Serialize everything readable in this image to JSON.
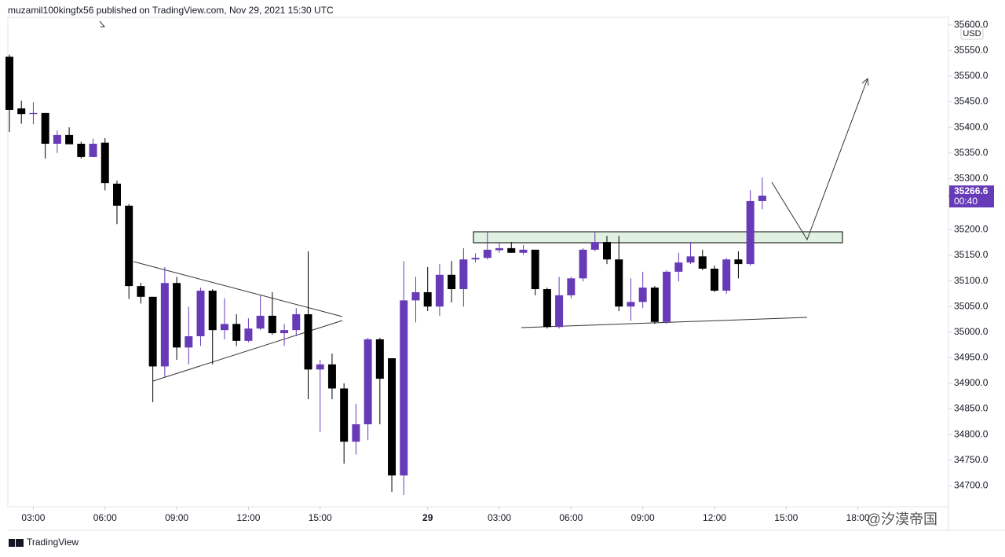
{
  "header": "muzamil100kingfx56 published on TradingView.com, Nov 29, 2021 15:30 UTC",
  "footer": "TradingView",
  "watermark": "@汐漠帝国",
  "chart_data": {
    "type": "candlestick",
    "currency": "USD",
    "up_color": "#673ab7",
    "down_color": "#000000",
    "open": [
      35538,
      35437,
      35426,
      35428,
      35368,
      35385,
      35368,
      35342,
      35370,
      35290,
      35247,
      35090,
      35069,
      34933,
      35096,
      34970,
      34992,
      35081,
      35004,
      35016,
      34983,
      35007,
      35032,
      34998,
      35004,
      35035,
      34927,
      34937,
      34890,
      34786,
      34820,
      34986,
      34949,
      34720,
      35062,
      35078,
      35050,
      35112,
      35084,
      35142,
      35145,
      35160,
      35164,
      35155,
      35161,
      35084,
      35010,
      35072,
      35105,
      35161,
      35176,
      35142,
      35050,
      35059,
      35087,
      35020,
      35118,
      35136,
      35148,
      35124,
      35081,
      35142,
      35133,
      35256
    ],
    "high": [
      35542,
      35452,
      35449,
      35428,
      35394,
      35400,
      35372,
      35378,
      35379,
      35296,
      35250,
      35096,
      35069,
      35127,
      35108,
      35050,
      35087,
      35084,
      35066,
      35035,
      35027,
      35072,
      35078,
      35016,
      35047,
      35158,
      34946,
      34958,
      34900,
      34860,
      34989,
      34989,
      34949,
      35139,
      35108,
      35127,
      35133,
      35139,
      35164,
      35154,
      35195,
      35176,
      35176,
      35170,
      35161,
      35087,
      35108,
      35108,
      35164,
      35195,
      35188,
      35188,
      35105,
      35118,
      35090,
      35121,
      35155,
      35176,
      35161,
      35130,
      35145,
      35158,
      35277,
      35302
    ],
    "low": [
      35391,
      35407,
      35406,
      35339,
      35350,
      35367,
      35339,
      35342,
      35277,
      35211,
      35065,
      35056,
      34863,
      34912,
      34946,
      34937,
      34973,
      34937,
      34986,
      34973,
      34980,
      35004,
      34995,
      34973,
      34992,
      34869,
      34805,
      34869,
      34743,
      34761,
      34789,
      34820,
      34688,
      34682,
      35019,
      35041,
      35032,
      35058,
      35050,
      35136,
      35142,
      35155,
      35155,
      35151,
      35072,
      35007,
      35007,
      35066,
      35099,
      35158,
      35133,
      35041,
      35022,
      35047,
      35016,
      35016,
      35099,
      35133,
      35121,
      35078,
      35075,
      35105,
      35130,
      35240
    ],
    "close": [
      35434,
      35426,
      35428,
      35368,
      35385,
      35367,
      35342,
      35368,
      35291,
      35247,
      35090,
      35069,
      34933,
      35096,
      34970,
      34992,
      35081,
      35004,
      35016,
      34983,
      35007,
      35032,
      34998,
      35004,
      35035,
      34927,
      34937,
      34890,
      34786,
      34820,
      34986,
      34909,
      34720,
      35062,
      35078,
      35050,
      35112,
      35084,
      35142,
      35145,
      35161,
      35164,
      35155,
      35161,
      35084,
      35010,
      35072,
      35105,
      35161,
      35176,
      35142,
      35050,
      35059,
      35087,
      35020,
      35118,
      35136,
      35148,
      35124,
      35081,
      35142,
      35133,
      35256,
      35266.6
    ],
    "last_price": 35266.6,
    "countdown": "00:40",
    "ylim": [
      34659,
      35615
    ],
    "yticks": [
      {
        "value": 34700,
        "label": "34700.0"
      },
      {
        "value": 34750,
        "label": "34750.0"
      },
      {
        "value": 34800,
        "label": "34800.0"
      },
      {
        "value": 34850,
        "label": "34850.0"
      },
      {
        "value": 34900,
        "label": "34900.0"
      },
      {
        "value": 34950,
        "label": "34950.0"
      },
      {
        "value": 35000,
        "label": "35000.0"
      },
      {
        "value": 35050,
        "label": "35050.0"
      },
      {
        "value": 35100,
        "label": "35100.0"
      },
      {
        "value": 35150,
        "label": "35150.0"
      },
      {
        "value": 35200,
        "label": "35200.0"
      },
      {
        "value": 35250,
        "label": "35250.0"
      },
      {
        "value": 35300,
        "label": "35300.0"
      },
      {
        "value": 35350,
        "label": "35350.0"
      },
      {
        "value": 35400,
        "label": "35400.0"
      },
      {
        "value": 35450,
        "label": "35450.0"
      },
      {
        "value": 35500,
        "label": "35500.0"
      },
      {
        "value": 35550,
        "label": "35550.0"
      },
      {
        "value": 35600,
        "label": "35600.0"
      }
    ],
    "xticks": [
      {
        "value": 2,
        "label": "03:00"
      },
      {
        "value": 8,
        "label": "06:00"
      },
      {
        "value": 14,
        "label": "09:00"
      },
      {
        "value": 20,
        "label": "12:00"
      },
      {
        "value": 26,
        "label": "15:00"
      },
      {
        "value": 35,
        "label": "29"
      },
      {
        "value": 41,
        "label": "03:00"
      },
      {
        "value": 47,
        "label": "06:00"
      },
      {
        "value": 53,
        "label": "09:00"
      },
      {
        "value": 59,
        "label": "12:00"
      },
      {
        "value": 65,
        "label": "15:00"
      },
      {
        "value": 71,
        "label": "18:00"
      }
    ]
  }
}
